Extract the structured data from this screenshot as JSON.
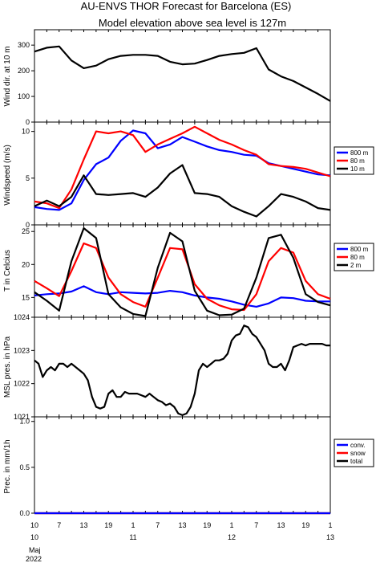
{
  "title_line1": "AU-ENVS THOR Forecast for Barcelona (ES)",
  "title_line2": "Model elevation above sea level is  127m",
  "x_axis": {
    "hour_ticks": [
      "10",
      "7",
      "13",
      "19",
      "1",
      "7",
      "13",
      "19",
      "1",
      "7",
      "13",
      "19",
      "1",
      "13"
    ],
    "day_labels": [
      "10",
      "11",
      "12",
      "13"
    ],
    "month": "Maj",
    "year": "2022"
  },
  "chart_data": [
    {
      "type": "line",
      "ylabel": "Wind dir. at 10 m",
      "ylim": [
        0,
        360
      ],
      "yticks": [
        "0",
        "100",
        "200",
        "300"
      ],
      "series": [
        {
          "color": "#000000",
          "x": [
            0,
            3,
            6,
            9,
            12,
            15,
            18,
            21,
            24,
            27,
            30,
            33,
            36,
            39,
            42,
            45,
            48,
            51,
            54,
            57,
            60,
            63,
            66,
            69,
            72
          ],
          "values": [
            275,
            290,
            295,
            240,
            210,
            220,
            245,
            258,
            262,
            262,
            258,
            235,
            225,
            228,
            242,
            258,
            265,
            270,
            288,
            205,
            178,
            160,
            135,
            110,
            82
          ]
        }
      ]
    },
    {
      "type": "line",
      "ylabel": "Windspeed (m/s)",
      "ylim": [
        0,
        11
      ],
      "yticks": [
        "0",
        "5",
        "10"
      ],
      "legend": [
        "800 m",
        "80 m",
        "10 m"
      ],
      "series": [
        {
          "name": "800 m",
          "color": "#0000ff",
          "x": [
            0,
            3,
            6,
            9,
            12,
            15,
            18,
            21,
            24,
            27,
            30,
            33,
            36,
            39,
            42,
            45,
            48,
            51,
            54,
            57,
            60,
            63,
            66,
            69,
            72
          ],
          "values": [
            1.9,
            1.7,
            1.6,
            2.3,
            4.8,
            6.5,
            7.2,
            9.0,
            10.1,
            9.8,
            8.2,
            8.6,
            9.4,
            8.9,
            8.4,
            8.0,
            7.8,
            7.5,
            7.4,
            6.6,
            6.3,
            6.0,
            5.7,
            5.4,
            5.3
          ]
        },
        {
          "name": "80 m",
          "color": "#ff0000",
          "x": [
            0,
            3,
            6,
            9,
            12,
            15,
            18,
            21,
            24,
            27,
            30,
            33,
            36,
            39,
            42,
            45,
            48,
            51,
            54,
            57,
            60,
            63,
            66,
            69,
            72
          ],
          "values": [
            2.5,
            2.3,
            1.8,
            3.8,
            7.0,
            10.0,
            9.8,
            10.0,
            9.6,
            7.8,
            8.6,
            9.2,
            9.8,
            10.5,
            9.8,
            9.1,
            8.6,
            8.0,
            7.5,
            6.5,
            6.3,
            6.2,
            6.0,
            5.6,
            5.2
          ]
        },
        {
          "name": "10 m",
          "color": "#000000",
          "x": [
            0,
            3,
            6,
            9,
            12,
            15,
            18,
            21,
            24,
            27,
            30,
            33,
            36,
            39,
            42,
            45,
            48,
            51,
            54,
            57,
            60,
            63,
            66,
            69,
            72
          ],
          "values": [
            2.0,
            2.6,
            2.0,
            3.0,
            5.3,
            3.3,
            3.2,
            3.3,
            3.4,
            3.0,
            4.0,
            5.5,
            6.4,
            3.4,
            3.3,
            3.0,
            2.0,
            1.4,
            0.9,
            2.0,
            3.3,
            3.0,
            2.5,
            1.8,
            1.6
          ]
        }
      ]
    },
    {
      "type": "line",
      "ylabel": "T in Celcius",
      "ylim": [
        12,
        26
      ],
      "yticks": [
        "15",
        "20",
        "25"
      ],
      "legend": [
        "800 m",
        "80 m",
        "2 m"
      ],
      "series": [
        {
          "name": "800 m",
          "color": "#0000ff",
          "x": [
            0,
            3,
            6,
            9,
            12,
            15,
            18,
            21,
            24,
            27,
            30,
            33,
            36,
            39,
            42,
            45,
            48,
            51,
            54,
            57,
            60,
            63,
            66,
            69,
            72
          ],
          "values": [
            15.3,
            15.5,
            15.6,
            15.9,
            16.7,
            15.8,
            15.5,
            15.8,
            15.7,
            15.6,
            15.7,
            16.0,
            15.8,
            15.3,
            15.0,
            14.8,
            14.4,
            13.9,
            13.6,
            14.1,
            15.0,
            14.9,
            14.5,
            14.4,
            14.4
          ]
        },
        {
          "name": "80 m",
          "color": "#ff0000",
          "x": [
            0,
            3,
            6,
            9,
            12,
            15,
            18,
            21,
            24,
            27,
            30,
            33,
            36,
            39,
            42,
            45,
            48,
            51,
            54,
            57,
            60,
            63,
            66,
            69,
            72
          ],
          "values": [
            17.5,
            16.4,
            15.2,
            19.0,
            23.2,
            22.5,
            18.0,
            15.5,
            14.3,
            13.6,
            18.0,
            22.5,
            22.3,
            17.0,
            14.8,
            13.8,
            13.2,
            13.1,
            15.5,
            20.5,
            22.5,
            21.8,
            17.5,
            15.5,
            14.8
          ]
        },
        {
          "name": "2 m",
          "color": "#000000",
          "x": [
            0,
            3,
            6,
            9,
            12,
            15,
            18,
            21,
            24,
            27,
            30,
            33,
            36,
            39,
            42,
            45,
            48,
            51,
            54,
            57,
            60,
            63,
            66,
            69,
            72
          ],
          "values": [
            15.8,
            14.5,
            13.0,
            20.5,
            25.5,
            24.0,
            15.5,
            13.5,
            12.5,
            12.2,
            19.5,
            24.8,
            23.5,
            16.0,
            13.0,
            12.3,
            12.4,
            13.3,
            18.0,
            24.0,
            24.5,
            21.0,
            15.5,
            14.3,
            13.8
          ]
        }
      ]
    },
    {
      "type": "line",
      "ylabel": "MSL pres. in hPa",
      "ylim": [
        1021,
        1024
      ],
      "yticks": [
        "1021",
        "1022",
        "1023",
        "1024"
      ],
      "series": [
        {
          "color": "#000000",
          "x": [
            0,
            1,
            2,
            3,
            4,
            5,
            6,
            7,
            8,
            9,
            10,
            11,
            12,
            13,
            14,
            15,
            16,
            17,
            18,
            19,
            20,
            21,
            22,
            23,
            24,
            25,
            26,
            27,
            28,
            29,
            30,
            31,
            32,
            33,
            34,
            35,
            36,
            37,
            38,
            39,
            40,
            41,
            42,
            43,
            44,
            45,
            46,
            47,
            48,
            49,
            50,
            51,
            52,
            53,
            54,
            55,
            56,
            57,
            58,
            59,
            60,
            61,
            62,
            63,
            64,
            65,
            66,
            67,
            68,
            69,
            70,
            71,
            72
          ],
          "values": [
            1022.7,
            1022.6,
            1022.2,
            1022.4,
            1022.5,
            1022.4,
            1022.6,
            1022.6,
            1022.5,
            1022.6,
            1022.5,
            1022.4,
            1022.3,
            1022.1,
            1021.6,
            1021.3,
            1021.25,
            1021.3,
            1021.7,
            1021.8,
            1021.6,
            1021.6,
            1021.75,
            1021.7,
            1021.7,
            1021.7,
            1021.65,
            1021.6,
            1021.7,
            1021.6,
            1021.5,
            1021.45,
            1021.35,
            1021.4,
            1021.3,
            1021.1,
            1021.05,
            1021.1,
            1021.3,
            1021.7,
            1022.4,
            1022.6,
            1022.5,
            1022.6,
            1022.7,
            1022.7,
            1022.75,
            1022.9,
            1023.3,
            1023.45,
            1023.5,
            1023.75,
            1023.7,
            1023.5,
            1023.4,
            1023.2,
            1023.0,
            1022.6,
            1022.5,
            1022.5,
            1022.6,
            1022.4,
            1022.7,
            1023.1,
            1023.15,
            1023.2,
            1023.15,
            1023.2,
            1023.2,
            1023.2,
            1023.2,
            1023.15,
            1023.15
          ]
        }
      ]
    },
    {
      "type": "line",
      "ylabel": "Prec. in mm/1h",
      "ylim": [
        0,
        1
      ],
      "yticks": [
        "0.0",
        "0.5",
        "1.0"
      ],
      "legend": [
        "conv.",
        "snow",
        "total"
      ],
      "series": [
        {
          "name": "total",
          "color": "#000000",
          "x": [
            0,
            72
          ],
          "values": [
            0,
            0
          ]
        },
        {
          "name": "snow",
          "color": "#ff0000",
          "x": [
            0,
            72
          ],
          "values": [
            0,
            0
          ]
        },
        {
          "name": "conv.",
          "color": "#0000ff",
          "x": [
            0,
            72
          ],
          "values": [
            0,
            0
          ]
        }
      ]
    }
  ]
}
